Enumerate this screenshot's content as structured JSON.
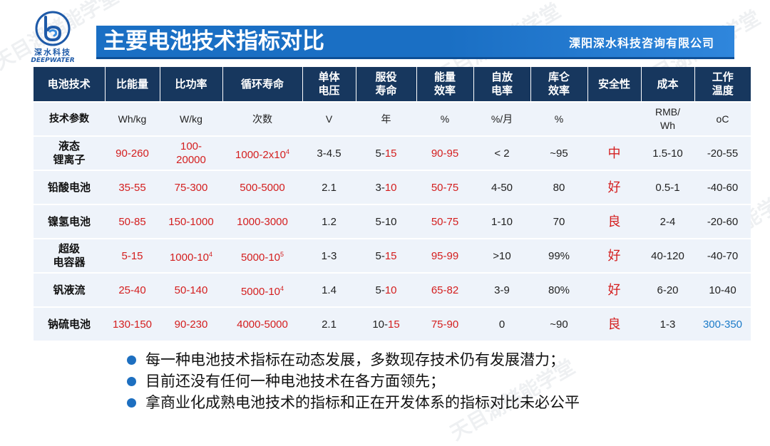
{
  "logo": {
    "cn": "深水科技",
    "en": "DEEPWATER"
  },
  "header": {
    "title": "主要电池技术指标对比",
    "company": "溧阳深水科技咨询有限公司"
  },
  "watermark": "天目湖储能学堂",
  "table": {
    "headers": [
      "电池技术",
      "比能量",
      "比功率",
      "循环寿命",
      "单体\n电压",
      "服役\n寿命",
      "能量\n效率",
      "自放\n电率",
      "库仑\n效率",
      "安全性",
      "成本",
      "工作\n温度"
    ],
    "params": [
      "技术参数",
      "Wh/kg",
      "W/kg",
      "次数",
      "V",
      "年",
      "%",
      "%/月",
      "%",
      "",
      "RMB/\nWh",
      "oC"
    ],
    "rows": [
      {
        "name": "液态\n锂离子",
        "energy": "90-260",
        "power": "100-\n20000",
        "cycle": "1000-2x10",
        "cycle_sup": "4",
        "voltage": "3-4.5",
        "service_lo": "5-",
        "service_hi": "15",
        "efficiency": "90-95",
        "self_discharge": "< 2",
        "coulomb": "~95",
        "safety": "中",
        "cost": "1.5-10",
        "temp": "-20-55"
      },
      {
        "name": "铅酸电池",
        "energy": "35-55",
        "power": "75-300",
        "cycle": "500-5000",
        "cycle_sup": "",
        "voltage": "2.1",
        "service_lo": "3-",
        "service_hi": "10",
        "efficiency": "50-75",
        "self_discharge": "4-50",
        "coulomb": "80",
        "safety": "好",
        "cost": "0.5-1",
        "temp": "-40-60"
      },
      {
        "name": "镍氢电池",
        "energy": "50-85",
        "power": "150-1000",
        "cycle": "1000-3000",
        "cycle_sup": "",
        "voltage": "1.2",
        "service_lo": "5-10",
        "service_hi": "",
        "efficiency": "50-75",
        "self_discharge": "1-10",
        "coulomb": "70",
        "safety": "良",
        "cost": "2-4",
        "temp": "-20-60"
      },
      {
        "name": "超级\n电容器",
        "energy": "5-15",
        "power": "1000-10",
        "power_sup": "4",
        "cycle": "5000-10",
        "cycle_sup": "5",
        "voltage": "1-3",
        "service_lo": "5-",
        "service_hi": "15",
        "efficiency": "95-99",
        "self_discharge": ">10",
        "coulomb": "99%",
        "safety": "好",
        "cost": "40-120",
        "temp": "-40-70"
      },
      {
        "name": "钒液流",
        "energy": "25-40",
        "power": "50-140",
        "cycle": "5000-10",
        "cycle_sup": "4",
        "voltage": "1.4",
        "service_lo": "5-",
        "service_hi": "10",
        "efficiency": "65-82",
        "self_discharge": "3-9",
        "coulomb": "80%",
        "safety": "好",
        "cost": "6-20",
        "temp": "10-40"
      },
      {
        "name": "钠硫电池",
        "energy": "130-150",
        "power": "90-230",
        "cycle": "4000-5000",
        "cycle_sup": "",
        "voltage": "2.1",
        "service_lo": "10-",
        "service_hi": "15",
        "efficiency": "75-90",
        "self_discharge": "0",
        "coulomb": "~90",
        "safety": "良",
        "cost": "1-3",
        "temp": "300-350"
      }
    ]
  },
  "bullets": [
    "每一种电池技术指标在动态发展，多数现存技术仍有发展潜力；",
    "目前还没有任何一种电池技术在各方面领先；",
    "拿商业化成熟电池技术的指标和正在开发体系的指标对比未必公平"
  ],
  "colors": {
    "title_bar": "#1a6fc4",
    "header_row": "#17375e",
    "value_red": "#d41e1e",
    "value_blue": "#1a7ac8",
    "bullet": "#1d6fc0"
  }
}
